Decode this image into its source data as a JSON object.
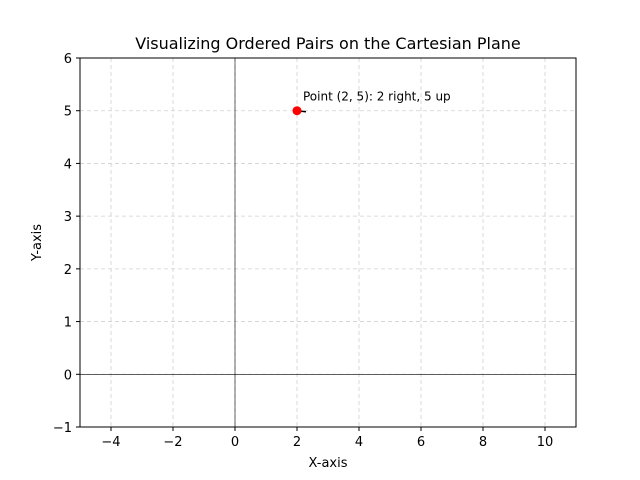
{
  "chart_data": {
    "type": "scatter",
    "title": "Visualizing Ordered Pairs on the Cartesian Plane",
    "xlabel": "X-axis",
    "ylabel": "Y-axis",
    "xlim": [
      -5,
      11
    ],
    "ylim": [
      -1,
      6
    ],
    "xticks": [
      -4,
      -2,
      0,
      2,
      4,
      6,
      8,
      10
    ],
    "xtick_labels": [
      "−4",
      "−2",
      "0",
      "2",
      "4",
      "6",
      "8",
      "10"
    ],
    "yticks": [
      -1,
      0,
      1,
      2,
      3,
      4,
      5,
      6
    ],
    "ytick_labels": [
      "−1",
      "0",
      "1",
      "2",
      "3",
      "4",
      "5",
      "6"
    ],
    "grid": true,
    "reference_lines": {
      "x": 0,
      "y": 0
    },
    "points": [
      {
        "x": 2,
        "y": 5
      }
    ],
    "point_color": "#ff0000",
    "annotations": [
      {
        "text": "Point (2, 5): 2 right, 5 up",
        "x": 2,
        "y": 5
      }
    ]
  }
}
